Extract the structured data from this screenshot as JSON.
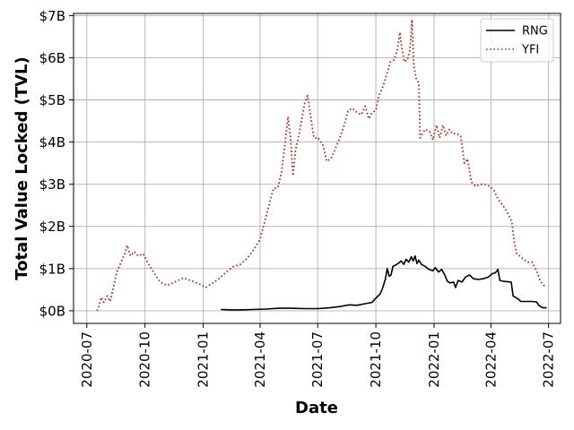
{
  "chart_data": {
    "type": "line",
    "title": "",
    "xlabel": "Date",
    "ylabel": "Total Value Locked (TVL)",
    "x_domain": [
      "2020-06-10",
      "2022-07-20"
    ],
    "ylim": [
      -0.3,
      7.05
    ],
    "y_unit": "billion USD",
    "grid": true,
    "legend_position": "top-right",
    "x_ticks": [
      {
        "date": "2020-07-01",
        "label": "2020-07"
      },
      {
        "date": "2020-10-01",
        "label": "2020-10"
      },
      {
        "date": "2021-01-01",
        "label": "2021-01"
      },
      {
        "date": "2021-04-01",
        "label": "2021-04"
      },
      {
        "date": "2021-07-01",
        "label": "2021-07"
      },
      {
        "date": "2021-10-01",
        "label": "2021-10"
      },
      {
        "date": "2022-01-01",
        "label": "2022-01"
      },
      {
        "date": "2022-04-01",
        "label": "2022-04"
      },
      {
        "date": "2022-07-01",
        "label": "2022-07"
      }
    ],
    "y_ticks": [
      {
        "value": 0,
        "label": "$0B"
      },
      {
        "value": 1,
        "label": "$1B"
      },
      {
        "value": 2,
        "label": "$2B"
      },
      {
        "value": 3,
        "label": "$3B"
      },
      {
        "value": 4,
        "label": "$4B"
      },
      {
        "value": 5,
        "label": "$5B"
      },
      {
        "value": 6,
        "label": "$6B"
      },
      {
        "value": 7,
        "label": "$7B"
      }
    ],
    "series": [
      {
        "name": "RNG",
        "color": "#000000",
        "line_style": "solid",
        "points": [
          [
            "2021-01-29",
            0.03
          ],
          [
            "2021-02-15",
            0.02
          ],
          [
            "2021-03-01",
            0.02
          ],
          [
            "2021-03-20",
            0.03
          ],
          [
            "2021-04-10",
            0.04
          ],
          [
            "2021-05-01",
            0.06
          ],
          [
            "2021-05-20",
            0.06
          ],
          [
            "2021-06-10",
            0.05
          ],
          [
            "2021-07-01",
            0.05
          ],
          [
            "2021-07-20",
            0.07
          ],
          [
            "2021-08-05",
            0.1
          ],
          [
            "2021-08-20",
            0.14
          ],
          [
            "2021-09-01",
            0.13
          ],
          [
            "2021-09-15",
            0.17
          ],
          [
            "2021-09-25",
            0.2
          ],
          [
            "2021-10-01",
            0.3
          ],
          [
            "2021-10-08",
            0.4
          ],
          [
            "2021-10-12",
            0.55
          ],
          [
            "2021-10-16",
            0.75
          ],
          [
            "2021-10-19",
            1.0
          ],
          [
            "2021-10-22",
            0.82
          ],
          [
            "2021-10-25",
            0.85
          ],
          [
            "2021-10-28",
            1.05
          ],
          [
            "2021-11-01",
            1.08
          ],
          [
            "2021-11-05",
            1.12
          ],
          [
            "2021-11-10",
            1.18
          ],
          [
            "2021-11-14",
            1.1
          ],
          [
            "2021-11-18",
            1.22
          ],
          [
            "2021-11-22",
            1.15
          ],
          [
            "2021-11-26",
            1.28
          ],
          [
            "2021-11-29",
            1.18
          ],
          [
            "2021-12-02",
            1.3
          ],
          [
            "2021-12-05",
            1.12
          ],
          [
            "2021-12-08",
            1.2
          ],
          [
            "2021-12-12",
            1.1
          ],
          [
            "2021-12-18",
            1.05
          ],
          [
            "2021-12-24",
            0.98
          ],
          [
            "2021-12-30",
            0.95
          ],
          [
            "2022-01-03",
            1.02
          ],
          [
            "2022-01-08",
            0.92
          ],
          [
            "2022-01-13",
            0.98
          ],
          [
            "2022-01-18",
            0.85
          ],
          [
            "2022-01-22",
            0.7
          ],
          [
            "2022-01-26",
            0.66
          ],
          [
            "2022-02-01",
            0.68
          ],
          [
            "2022-02-04",
            0.55
          ],
          [
            "2022-02-08",
            0.72
          ],
          [
            "2022-02-14",
            0.68
          ],
          [
            "2022-02-20",
            0.8
          ],
          [
            "2022-02-26",
            0.85
          ],
          [
            "2022-03-04",
            0.76
          ],
          [
            "2022-03-12",
            0.74
          ],
          [
            "2022-03-20",
            0.76
          ],
          [
            "2022-03-28",
            0.8
          ],
          [
            "2022-04-03",
            0.88
          ],
          [
            "2022-04-08",
            0.9
          ],
          [
            "2022-04-12",
            0.98
          ],
          [
            "2022-04-15",
            0.72
          ],
          [
            "2022-04-20",
            0.7
          ],
          [
            "2022-05-03",
            0.68
          ],
          [
            "2022-05-06",
            0.35
          ],
          [
            "2022-05-14",
            0.28
          ],
          [
            "2022-05-18",
            0.22
          ],
          [
            "2022-06-05",
            0.22
          ],
          [
            "2022-06-12",
            0.21
          ],
          [
            "2022-06-16",
            0.12
          ],
          [
            "2022-06-22",
            0.07
          ],
          [
            "2022-06-28",
            0.07
          ]
        ]
      },
      {
        "name": "YFI",
        "color": "#b22222",
        "line_style": "dotted",
        "points": [
          [
            "2020-07-17",
            0.0
          ],
          [
            "2020-07-20",
            0.1
          ],
          [
            "2020-07-24",
            0.32
          ],
          [
            "2020-07-28",
            0.2
          ],
          [
            "2020-08-02",
            0.35
          ],
          [
            "2020-08-07",
            0.22
          ],
          [
            "2020-08-12",
            0.55
          ],
          [
            "2020-08-17",
            0.9
          ],
          [
            "2020-08-24",
            1.15
          ],
          [
            "2020-08-30",
            1.35
          ],
          [
            "2020-09-03",
            1.55
          ],
          [
            "2020-09-08",
            1.3
          ],
          [
            "2020-09-14",
            1.4
          ],
          [
            "2020-09-20",
            1.3
          ],
          [
            "2020-09-28",
            1.35
          ],
          [
            "2020-10-05",
            1.15
          ],
          [
            "2020-10-15",
            0.9
          ],
          [
            "2020-10-25",
            0.68
          ],
          [
            "2020-11-05",
            0.6
          ],
          [
            "2020-11-20",
            0.7
          ],
          [
            "2020-12-01",
            0.78
          ],
          [
            "2020-12-15",
            0.7
          ],
          [
            "2020-12-28",
            0.62
          ],
          [
            "2021-01-05",
            0.55
          ],
          [
            "2021-01-15",
            0.65
          ],
          [
            "2021-01-25",
            0.75
          ],
          [
            "2021-02-05",
            0.9
          ],
          [
            "2021-02-18",
            1.05
          ],
          [
            "2021-03-01",
            1.1
          ],
          [
            "2021-03-12",
            1.25
          ],
          [
            "2021-03-22",
            1.45
          ],
          [
            "2021-04-01",
            1.7
          ],
          [
            "2021-04-08",
            2.1
          ],
          [
            "2021-04-15",
            2.5
          ],
          [
            "2021-04-22",
            2.9
          ],
          [
            "2021-04-29",
            2.92
          ],
          [
            "2021-05-05",
            3.3
          ],
          [
            "2021-05-10",
            3.9
          ],
          [
            "2021-05-15",
            4.6
          ],
          [
            "2021-05-19",
            4.1
          ],
          [
            "2021-05-23",
            3.2
          ],
          [
            "2021-05-27",
            3.8
          ],
          [
            "2021-06-03",
            4.3
          ],
          [
            "2021-06-10",
            4.9
          ],
          [
            "2021-06-15",
            5.1
          ],
          [
            "2021-06-20",
            4.6
          ],
          [
            "2021-06-25",
            4.1
          ],
          [
            "2021-07-02",
            4.1
          ],
          [
            "2021-07-10",
            3.9
          ],
          [
            "2021-07-15",
            3.55
          ],
          [
            "2021-07-22",
            3.6
          ],
          [
            "2021-07-29",
            3.85
          ],
          [
            "2021-08-05",
            4.1
          ],
          [
            "2021-08-12",
            4.4
          ],
          [
            "2021-08-18",
            4.75
          ],
          [
            "2021-08-25",
            4.8
          ],
          [
            "2021-09-01",
            4.7
          ],
          [
            "2021-09-08",
            4.65
          ],
          [
            "2021-09-14",
            4.85
          ],
          [
            "2021-09-20",
            4.55
          ],
          [
            "2021-09-25",
            4.7
          ],
          [
            "2021-10-01",
            4.75
          ],
          [
            "2021-10-06",
            5.1
          ],
          [
            "2021-10-12",
            5.3
          ],
          [
            "2021-10-18",
            5.6
          ],
          [
            "2021-10-24",
            5.9
          ],
          [
            "2021-10-30",
            5.95
          ],
          [
            "2021-11-04",
            6.2
          ],
          [
            "2021-11-08",
            6.6
          ],
          [
            "2021-11-12",
            6.15
          ],
          [
            "2021-11-15",
            5.9
          ],
          [
            "2021-11-20",
            5.95
          ],
          [
            "2021-11-24",
            6.2
          ],
          [
            "2021-11-27",
            6.9
          ],
          [
            "2021-11-30",
            5.8
          ],
          [
            "2021-12-04",
            5.5
          ],
          [
            "2021-12-08",
            5.4
          ],
          [
            "2021-12-10",
            4.1
          ],
          [
            "2021-12-18",
            4.3
          ],
          [
            "2021-12-25",
            4.25
          ],
          [
            "2021-12-30",
            4.05
          ],
          [
            "2022-01-05",
            4.4
          ],
          [
            "2022-01-10",
            4.1
          ],
          [
            "2022-01-15",
            4.4
          ],
          [
            "2022-01-20",
            4.15
          ],
          [
            "2022-01-25",
            4.3
          ],
          [
            "2022-01-30",
            4.2
          ],
          [
            "2022-02-05",
            4.2
          ],
          [
            "2022-02-12",
            4.15
          ],
          [
            "2022-02-18",
            3.5
          ],
          [
            "2022-02-23",
            3.6
          ],
          [
            "2022-03-01",
            3.05
          ],
          [
            "2022-03-08",
            2.95
          ],
          [
            "2022-03-15",
            3.0
          ],
          [
            "2022-03-22",
            3.0
          ],
          [
            "2022-03-30",
            2.95
          ],
          [
            "2022-04-06",
            2.85
          ],
          [
            "2022-04-12",
            2.65
          ],
          [
            "2022-04-20",
            2.5
          ],
          [
            "2022-04-28",
            2.3
          ],
          [
            "2022-05-04",
            2.1
          ],
          [
            "2022-05-08",
            1.6
          ],
          [
            "2022-05-12",
            1.35
          ],
          [
            "2022-05-20",
            1.25
          ],
          [
            "2022-05-28",
            1.15
          ],
          [
            "2022-06-05",
            1.15
          ],
          [
            "2022-06-12",
            0.95
          ],
          [
            "2022-06-18",
            0.7
          ],
          [
            "2022-06-25",
            0.58
          ]
        ]
      }
    ]
  }
}
